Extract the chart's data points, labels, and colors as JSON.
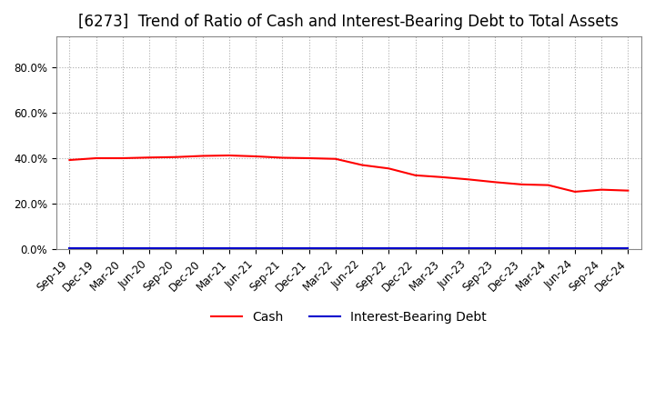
{
  "title": "[6273]  Trend of Ratio of Cash and Interest-Bearing Debt to Total Assets",
  "x_labels": [
    "Sep-19",
    "Dec-19",
    "Mar-20",
    "Jun-20",
    "Sep-20",
    "Dec-20",
    "Mar-21",
    "Jun-21",
    "Sep-21",
    "Dec-21",
    "Mar-22",
    "Jun-22",
    "Sep-22",
    "Dec-22",
    "Mar-23",
    "Jun-23",
    "Sep-23",
    "Dec-23",
    "Mar-24",
    "Jun-24",
    "Sep-24",
    "Dec-24"
  ],
  "cash": [
    0.392,
    0.4,
    0.4,
    0.403,
    0.405,
    0.41,
    0.412,
    0.408,
    0.402,
    0.4,
    0.397,
    0.37,
    0.355,
    0.325,
    0.317,
    0.307,
    0.295,
    0.285,
    0.282,
    0.253,
    0.262,
    0.258
  ],
  "interest_bearing_debt": [
    0.005,
    0.005,
    0.005,
    0.005,
    0.005,
    0.005,
    0.005,
    0.005,
    0.005,
    0.005,
    0.005,
    0.005,
    0.005,
    0.005,
    0.005,
    0.005,
    0.005,
    0.005,
    0.005,
    0.005,
    0.005,
    0.005
  ],
  "cash_color": "#ff0000",
  "debt_color": "#0000cd",
  "background_color": "#ffffff",
  "grid_color": "#aaaaaa",
  "ylim": [
    0.0,
    0.9333
  ],
  "yticks": [
    0.0,
    0.2,
    0.4,
    0.6,
    0.8
  ],
  "legend_cash": "Cash",
  "legend_debt": "Interest-Bearing Debt",
  "title_fontsize": 12,
  "tick_fontsize": 8.5,
  "legend_fontsize": 10
}
